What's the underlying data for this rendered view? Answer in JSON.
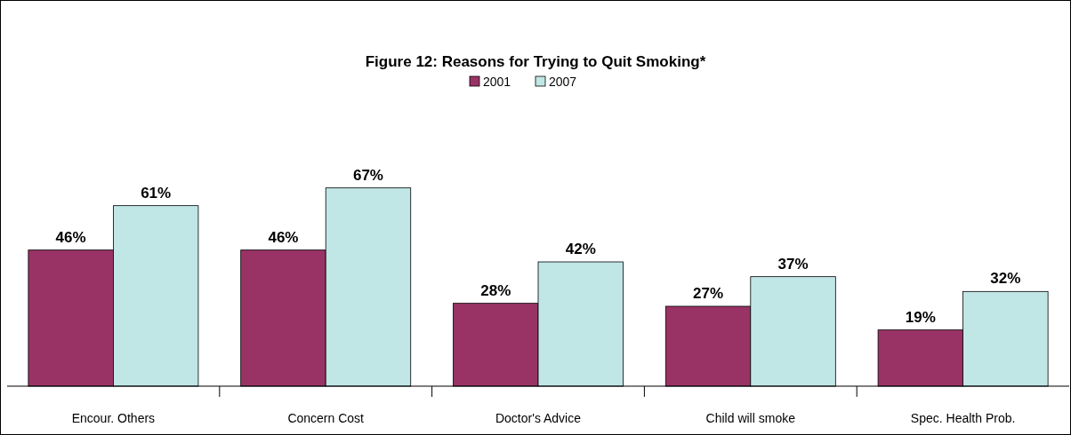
{
  "chart_data": {
    "type": "bar",
    "title": "Figure 12: Reasons for Trying to Quit Smoking*",
    "categories": [
      "Encour. Others",
      "Concern Cost",
      "Doctor's Advice",
      "Child will smoke",
      "Spec. Health Prob."
    ],
    "series": [
      {
        "name": "2001",
        "color": "#993366",
        "values": [
          46,
          46,
          28,
          27,
          19
        ],
        "value_labels": [
          "46%",
          "46%",
          "28%",
          "27%",
          "19%"
        ]
      },
      {
        "name": "2007",
        "color": "#c0e6e6",
        "values": [
          61,
          67,
          42,
          37,
          32
        ],
        "value_labels": [
          "61%",
          "67%",
          "42%",
          "37%",
          "32%"
        ]
      }
    ],
    "legend": "top"
  }
}
